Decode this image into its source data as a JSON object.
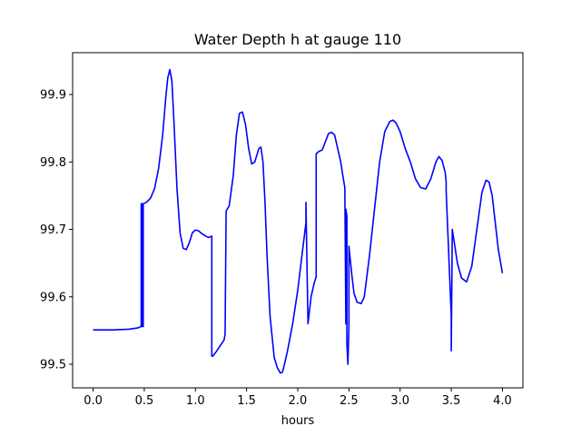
{
  "chart_data": {
    "type": "line",
    "title": "Water Depth h at gauge 110",
    "xlabel": "hours",
    "ylabel": "",
    "xlim": [
      -0.2,
      4.2
    ],
    "ylim": [
      99.465,
      99.962
    ],
    "xticks": [
      0.0,
      0.5,
      1.0,
      1.5,
      2.0,
      2.5,
      3.0,
      3.5,
      4.0
    ],
    "xtick_labels": [
      "0.0",
      "0.5",
      "1.0",
      "1.5",
      "2.0",
      "2.5",
      "3.0",
      "3.5",
      "4.0"
    ],
    "yticks": [
      99.5,
      99.6,
      99.7,
      99.8,
      99.9
    ],
    "ytick_labels": [
      "99.5",
      "99.6",
      "99.7",
      "99.8",
      "99.9"
    ],
    "grid": false,
    "legend": "none",
    "series": [
      {
        "color": "#0000ff",
        "x": [
          0.0,
          0.2,
          0.35,
          0.44,
          0.47,
          0.47,
          0.48,
          0.48,
          0.49,
          0.49,
          0.52,
          0.56,
          0.6,
          0.64,
          0.68,
          0.71,
          0.73,
          0.75,
          0.77,
          0.79,
          0.82,
          0.85,
          0.88,
          0.91,
          0.94,
          0.97,
          1.0,
          1.03,
          1.06,
          1.1,
          1.13,
          1.16,
          1.16,
          1.17,
          1.2,
          1.24,
          1.28,
          1.29,
          1.3,
          1.33,
          1.37,
          1.4,
          1.43,
          1.46,
          1.49,
          1.52,
          1.55,
          1.58,
          1.6,
          1.62,
          1.64,
          1.66,
          1.68,
          1.7,
          1.73,
          1.77,
          1.8,
          1.83,
          1.85,
          1.87,
          1.9,
          1.95,
          2.0,
          2.04,
          2.08,
          2.08,
          2.1,
          2.13,
          2.16,
          2.18,
          2.18,
          2.2,
          2.24,
          2.27,
          2.3,
          2.33,
          2.36,
          2.39,
          2.42,
          2.44,
          2.46,
          2.47,
          2.47,
          2.48,
          2.48,
          2.49,
          2.5,
          2.5,
          2.51,
          2.53,
          2.55,
          2.58,
          2.62,
          2.65,
          2.7,
          2.75,
          2.8,
          2.85,
          2.9,
          2.93,
          2.96,
          3.0,
          3.05,
          3.1,
          3.15,
          3.2,
          3.25,
          3.3,
          3.35,
          3.38,
          3.41,
          3.44,
          3.45,
          3.45,
          3.5,
          3.5,
          3.51,
          3.53,
          3.56,
          3.6,
          3.65,
          3.7,
          3.75,
          3.8,
          3.84,
          3.87,
          3.9,
          3.93,
          3.96,
          4.0
        ],
        "y": [
          99.551,
          99.551,
          99.552,
          99.554,
          99.556,
          99.738,
          99.738,
          99.556,
          99.556,
          99.738,
          99.74,
          99.746,
          99.76,
          99.79,
          99.84,
          99.895,
          99.925,
          99.937,
          99.92,
          99.86,
          99.76,
          99.695,
          99.672,
          99.67,
          99.68,
          99.695,
          99.699,
          99.698,
          99.694,
          99.69,
          99.688,
          99.69,
          99.512,
          99.512,
          99.518,
          99.527,
          99.536,
          99.545,
          99.727,
          99.735,
          99.78,
          99.84,
          99.872,
          99.874,
          99.855,
          99.82,
          99.797,
          99.8,
          99.81,
          99.82,
          99.822,
          99.8,
          99.74,
          99.66,
          99.57,
          99.51,
          99.495,
          99.487,
          99.488,
          99.5,
          99.52,
          99.56,
          99.61,
          99.66,
          99.71,
          99.74,
          99.56,
          99.6,
          99.62,
          99.63,
          99.812,
          99.815,
          99.818,
          99.83,
          99.842,
          99.844,
          99.84,
          99.82,
          99.8,
          99.78,
          99.762,
          99.56,
          99.73,
          99.72,
          99.53,
          99.5,
          99.555,
          99.675,
          99.66,
          99.63,
          99.605,
          99.592,
          99.59,
          99.6,
          99.66,
          99.73,
          99.8,
          99.845,
          99.86,
          99.862,
          99.858,
          99.845,
          99.82,
          99.8,
          99.775,
          99.762,
          99.76,
          99.775,
          99.8,
          99.808,
          99.802,
          99.785,
          99.77,
          99.757,
          99.572,
          99.52,
          99.7,
          99.68,
          99.65,
          99.628,
          99.622,
          99.645,
          99.7,
          99.755,
          99.773,
          99.77,
          99.75,
          99.71,
          99.67,
          99.635
        ]
      }
    ]
  }
}
